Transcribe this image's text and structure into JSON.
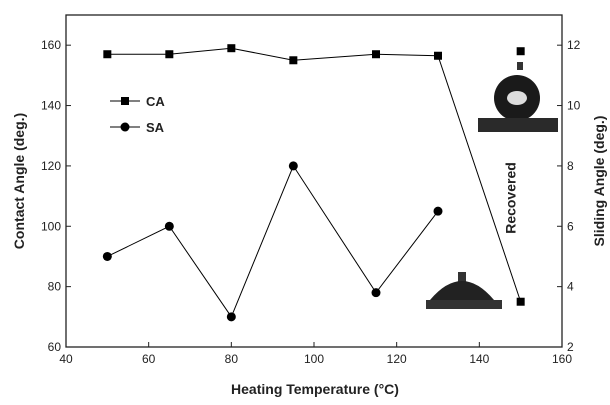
{
  "chart_data": {
    "type": "line",
    "x_label": "Heating Temperature (°C)",
    "y_label": "Contact Angle (deg.)",
    "y2_label": "Sliding Angle (deg.)",
    "xlim": [
      40,
      160
    ],
    "xticks": [
      40,
      60,
      80,
      100,
      120,
      140,
      160
    ],
    "ylim": [
      60,
      170
    ],
    "yticks": [
      60,
      80,
      100,
      120,
      140,
      160
    ],
    "y2lim": [
      2,
      13
    ],
    "y2ticks": [
      2,
      4,
      6,
      8,
      10,
      12
    ],
    "legend": "upper left",
    "series": [
      {
        "name": "CA",
        "color": "#000000",
        "marker": "square",
        "axis": "y",
        "x": [
          50,
          65,
          80,
          95,
          115,
          130,
          150
        ],
        "values": [
          157,
          157,
          159,
          155,
          157,
          156.5,
          75
        ]
      },
      {
        "name": "SA",
        "color": "#000000",
        "marker": "circle",
        "axis": "y2",
        "x": [
          50,
          65,
          80,
          95,
          115,
          130
        ],
        "values": [
          5,
          6,
          3,
          8,
          3.8,
          6.5
        ]
      }
    ],
    "annotations": [
      {
        "text": "Recovered",
        "x": 150,
        "y": 158
      }
    ]
  }
}
